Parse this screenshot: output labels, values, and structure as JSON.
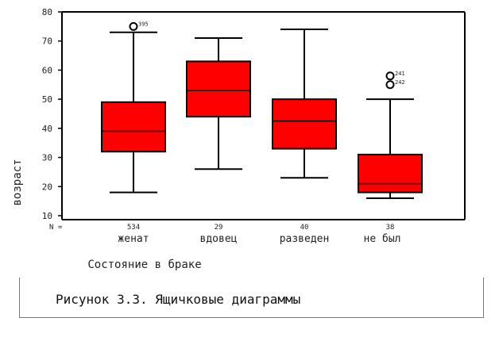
{
  "chart_data": {
    "type": "boxplot",
    "ylabel": "возраст",
    "xlabel": "Состояние в браке",
    "yticks": [
      10,
      20,
      30,
      40,
      50,
      60,
      70,
      80
    ],
    "ylim": [
      10,
      80
    ],
    "n_label": "N =",
    "categories": [
      "женат",
      "вдовец",
      "разведен",
      "не был"
    ],
    "n_values": [
      "534",
      "29",
      "40",
      "38"
    ],
    "box_color": "#ff0000",
    "groups": [
      {
        "category": "женат",
        "min": 18,
        "q1": 32,
        "median": 39,
        "q3": 49,
        "max": 73,
        "outliers": [
          {
            "value": 75,
            "label": "395"
          }
        ]
      },
      {
        "category": "вдовец",
        "min": 26,
        "q1": 44,
        "median": 53,
        "q3": 63,
        "max": 71,
        "outliers": []
      },
      {
        "category": "разведен",
        "min": 23,
        "q1": 33,
        "median": 42.5,
        "q3": 50,
        "max": 74,
        "outliers": []
      },
      {
        "category": "не был",
        "min": 16,
        "q1": 18,
        "median": 21,
        "q3": 31,
        "max": 50,
        "outliers": [
          {
            "value": 58,
            "label": "241"
          },
          {
            "value": 55,
            "label": "242"
          }
        ]
      }
    ]
  },
  "caption": "Рисунок 3.3. Ящичковые диаграммы"
}
